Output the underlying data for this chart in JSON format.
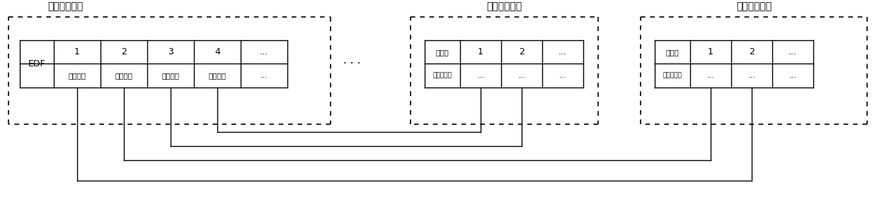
{
  "bg_color": "#ffffff",
  "line_color": "#000000",
  "fig_width": 12.39,
  "fig_height": 2.99,
  "cabinet1_title": "综合配线机柜",
  "cabinet2_title": "专用电话机柜",
  "cabinet3_title": "公务电话机柜",
  "edf_label": "EDF",
  "col_labels_top": [
    "1",
    "2",
    "3",
    "4",
    "..."
  ],
  "col_labels_bot": [
    "公务电话",
    "专用电话",
    "时钟系统",
    "专用无线",
    "..."
  ],
  "dots_label": "···",
  "switch_label": "交换机",
  "switch_sublabel": "综合配线框",
  "phone_cols_top": [
    "1",
    "2",
    "..."
  ],
  "phone_cols_bot": [
    "...",
    "..."
  ]
}
